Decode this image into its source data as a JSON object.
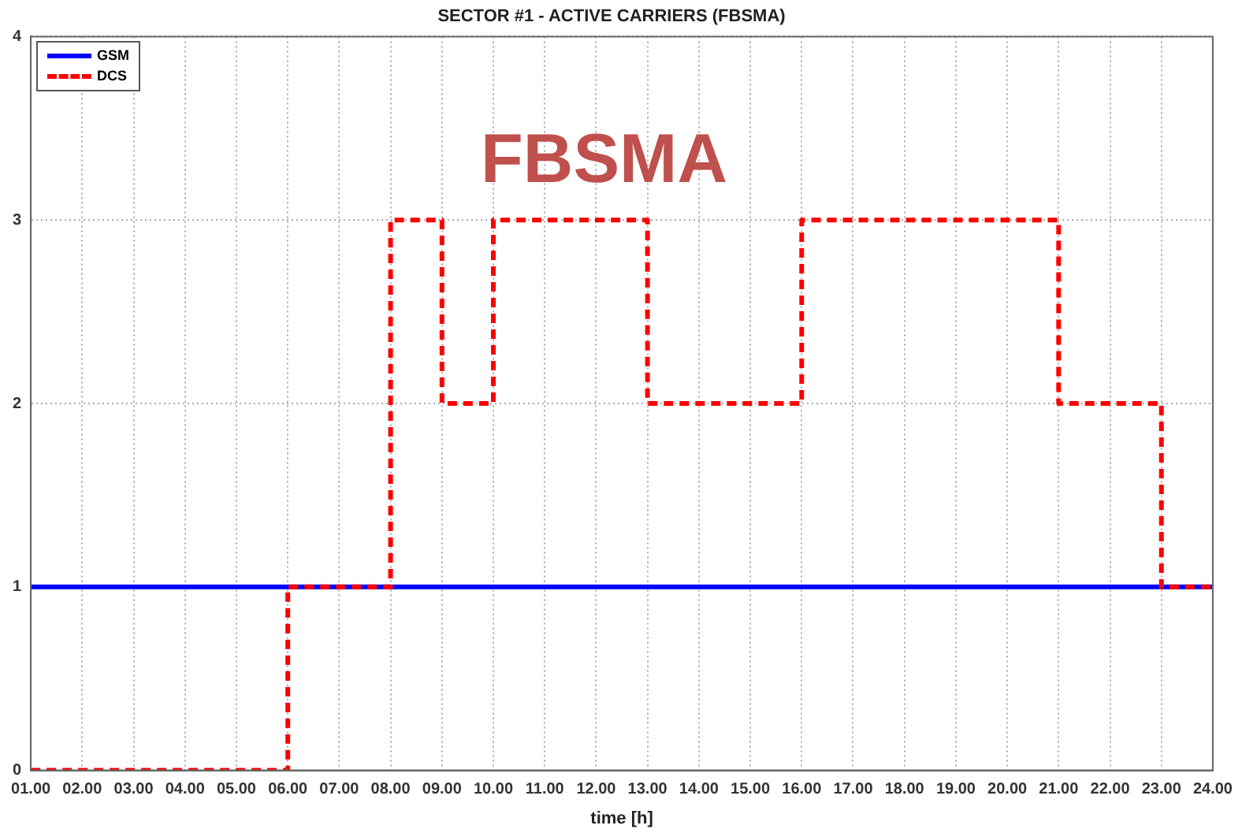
{
  "chart_data": {
    "type": "step",
    "title": "SECTOR #1 - ACTIVE CARRIERS (FBSMA)",
    "xlabel": "time [h]",
    "annotations": [
      "FBSMA"
    ],
    "series": [
      {
        "name": "GSM",
        "color": "#0000ff",
        "line_style": "solid",
        "x": [
          1,
          24
        ],
        "values": [
          1,
          1
        ]
      },
      {
        "name": "DCS",
        "color": "#ff0000",
        "line_style": "dashed",
        "x": [
          1,
          6,
          8,
          9,
          10,
          13,
          16,
          21,
          23,
          24
        ],
        "values": [
          0,
          1,
          3,
          2,
          3,
          2,
          3,
          2,
          1,
          1
        ]
      }
    ],
    "xlim": [
      1,
      24
    ],
    "xticks": [
      {
        "value": 1,
        "label": "01.00"
      },
      {
        "value": 2,
        "label": "02.00"
      },
      {
        "value": 3,
        "label": "03.00"
      },
      {
        "value": 4,
        "label": "04.00"
      },
      {
        "value": 5,
        "label": "05.00"
      },
      {
        "value": 6,
        "label": "06.00"
      },
      {
        "value": 7,
        "label": "07.00"
      },
      {
        "value": 8,
        "label": "08.00"
      },
      {
        "value": 9,
        "label": "09.00"
      },
      {
        "value": 10,
        "label": "10.00"
      },
      {
        "value": 11,
        "label": "11.00"
      },
      {
        "value": 12,
        "label": "12.00"
      },
      {
        "value": 13,
        "label": "13.00"
      },
      {
        "value": 14,
        "label": "14.00"
      },
      {
        "value": 15,
        "label": "15.00"
      },
      {
        "value": 16,
        "label": "16.00"
      },
      {
        "value": 17,
        "label": "17.00"
      },
      {
        "value": 18,
        "label": "18.00"
      },
      {
        "value": 19,
        "label": "19.00"
      },
      {
        "value": 20,
        "label": "20.00"
      },
      {
        "value": 21,
        "label": "21.00"
      },
      {
        "value": 22,
        "label": "22.00"
      },
      {
        "value": 23,
        "label": "23.00"
      },
      {
        "value": 24,
        "label": "24.00"
      }
    ],
    "ylim": [
      0,
      4
    ],
    "yticks": [
      0,
      1,
      2,
      3,
      4
    ],
    "grid": true,
    "legend": "top left",
    "marker": "none"
  }
}
